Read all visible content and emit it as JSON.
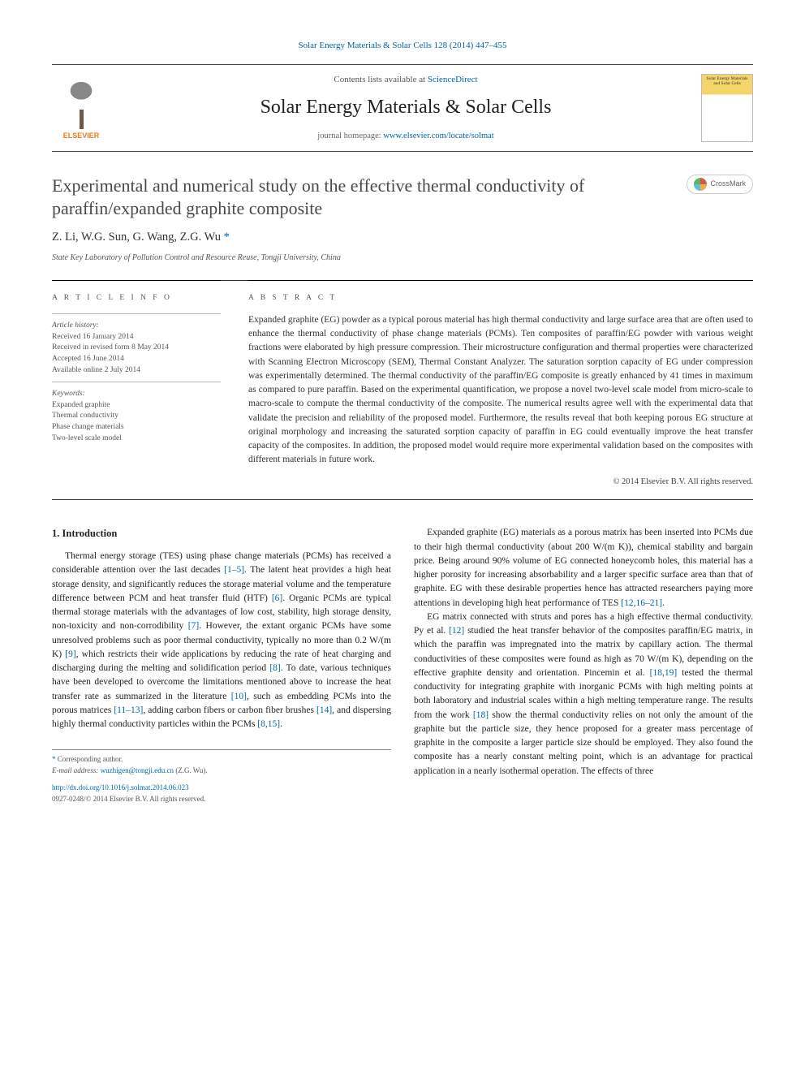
{
  "header": {
    "journal_ref": "Solar Energy Materials & Solar Cells 128 (2014) 447–455",
    "contents_prefix": "Contents lists available at ",
    "contents_link": "ScienceDirect",
    "journal_name": "Solar Energy Materials & Solar Cells",
    "homepage_prefix": "journal homepage: ",
    "homepage_url": "www.elsevier.com/locate/solmat",
    "publisher_label": "ELSEVIER",
    "cover_caption": "Solar Energy Materials and Solar Cells"
  },
  "title": "Experimental and numerical study on the effective thermal conductivity of paraffin/expanded graphite composite",
  "crossmark": "CrossMark",
  "authors": "Z. Li, W.G. Sun, G. Wang, Z.G. Wu",
  "affiliation": "State Key Laboratory of Pollution Control and Resource Reuse, Tongji University, China",
  "article_info": {
    "heading": "A R T I C L E  I N F O",
    "history_label": "Article history:",
    "history": [
      "Received 16 January 2014",
      "Received in revised form 8 May 2014",
      "Accepted 16 June 2014",
      "Available online 2 July 2014"
    ],
    "keywords_label": "Keywords:",
    "keywords": [
      "Expanded graphite",
      "Thermal conductivity",
      "Phase change materials",
      "Two-level scale model"
    ]
  },
  "abstract": {
    "heading": "A B S T R A C T",
    "text": "Expanded graphite (EG) powder as a typical porous material has high thermal conductivity and large surface area that are often used to enhance the thermal conductivity of phase change materials (PCMs). Ten composites of paraffin/EG powder with various weight fractions were elaborated by high pressure compression. Their microstructure configuration and thermal properties were characterized with Scanning Electron Microscopy (SEM), Thermal Constant Analyzer. The saturation sorption capacity of EG under compression was experimentally determined. The thermal conductivity of the paraffin/EG composite is greatly enhanced by 41 times in maximum as compared to pure paraffin. Based on the experimental quantification, we propose a novel two-level scale model from micro-scale to macro-scale to compute the thermal conductivity of the composite. The numerical results agree well with the experimental data that validate the precision and reliability of the proposed model. Furthermore, the results reveal that both keeping porous EG structure at original morphology and increasing the saturated sorption capacity of paraffin in EG could eventually improve the heat transfer capacity of the composites. In addition, the proposed model would require more experimental validation based on the composites with different materials in future work.",
    "copyright": "© 2014 Elsevier B.V. All rights reserved."
  },
  "body": {
    "section_heading": "1. Introduction",
    "p1_a": "Thermal energy storage (TES) using phase change materials (PCMs) has received a considerable attention over the last decades ",
    "c1": "[1–5]",
    "p1_b": ". The latent heat provides a high heat storage density, and significantly reduces the storage material volume and the temperature difference between PCM and heat transfer fluid (HTF) ",
    "c2": "[6]",
    "p1_c": ". Organic PCMs are typical thermal storage materials with the advantages of low cost, stability, high storage density, non-toxicity and non-corrodibility ",
    "c3": "[7]",
    "p1_d": ". However, the extant organic PCMs have some unresolved problems such as poor thermal conductivity, typically no more than 0.2 W/(m K) ",
    "c4": "[9]",
    "p1_e": ", which restricts their wide applications by reducing the rate of heat charging and discharging during the melting and solidification period ",
    "c5": "[8]",
    "p1_f": ". To date, various techniques have been developed to overcome the limitations mentioned above to increase the heat transfer rate as summarized in the literature ",
    "c6": "[10]",
    "p1_g": ", such as embedding PCMs into the porous matrices ",
    "c7": "[11–13]",
    "p1_h": ", adding carbon fibers or carbon fiber brushes ",
    "c8": "[14]",
    "p1_i": ", and dispersing highly thermal conductivity particles within the PCMs ",
    "c9": "[8,15]",
    "p1_j": ".",
    "p2_a": "Expanded graphite (EG) materials as a porous matrix has been inserted into PCMs due to their high thermal conductivity (about 200 W/(m K)), chemical stability and bargain price. Being around 90% volume of EG connected honeycomb holes, this material has a higher porosity for increasing absorbability and a larger specific surface area than that of graphite. EG with these desirable properties hence has attracted researchers paying more attentions in developing high heat performance of TES ",
    "c10": "[12,16–21]",
    "p2_b": ".",
    "p3_a": "EG matrix connected with struts and pores has a high effective thermal conductivity. Py et al. ",
    "c11": "[12]",
    "p3_b": " studied the heat transfer behavior of the composites paraffin/EG matrix, in which the paraffin was impregnated into the matrix by capillary action. The thermal conductivities of these composites were found as high as 70 W/(m K), depending on the effective graphite density and orientation. Pincemin et al. ",
    "c12": "[18,19]",
    "p3_c": " tested the thermal conductivity for integrating graphite with inorganic PCMs with high melting points at both laboratory and industrial scales within a high melting temperature range. The results from the work ",
    "c13": "[18]",
    "p3_d": " show the thermal conductivity relies on not only the amount of the graphite but the particle size, they hence proposed for a greater mass percentage of graphite in the composite a larger particle size should be employed. They also found the composite has a nearly constant melting point, which is an advantage for practical application in a nearly isothermal operation. The effects of three"
  },
  "footnote": {
    "corr": "Corresponding author.",
    "email_label": "E-mail address: ",
    "email": "wuzhigen@tongji.edu.cn",
    "email_who": " (Z.G. Wu).",
    "doi": "http://dx.doi.org/10.1016/j.solmat.2014.06.023",
    "issn_line": "0927-0248/© 2014 Elsevier B.V. All rights reserved."
  }
}
